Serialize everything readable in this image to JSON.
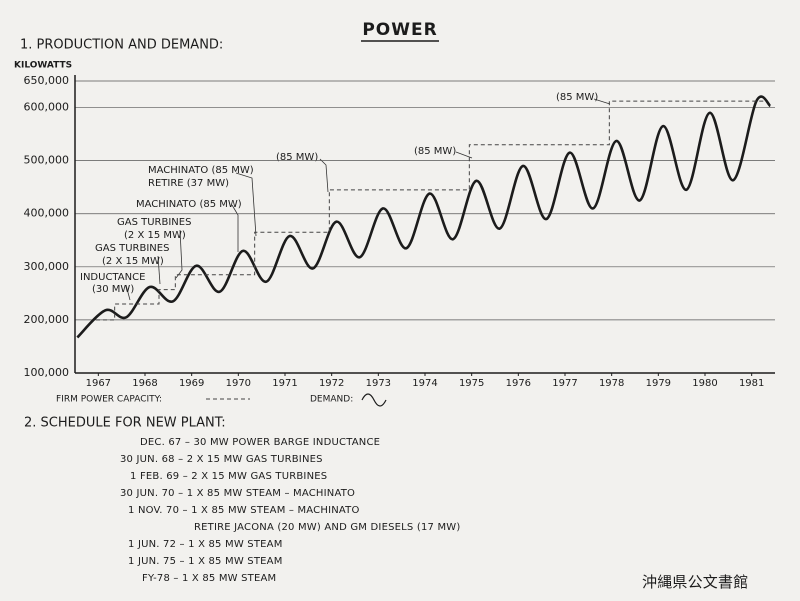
{
  "title": "POWER",
  "chart_data": {
    "type": "line",
    "title": "1. PRODUCTION AND DEMAND:",
    "ylabel": "KILOWATTS",
    "xlim": [
      1967,
      1982
    ],
    "xticks": [
      {
        "value": 1967.5,
        "label": "1967"
      },
      {
        "value": 1968.5,
        "label": "1968"
      },
      {
        "value": 1969.5,
        "label": "1969"
      },
      {
        "value": 1970.5,
        "label": "1970"
      },
      {
        "value": 1971.5,
        "label": "1971"
      },
      {
        "value": 1972.5,
        "label": "1972"
      },
      {
        "value": 1973.5,
        "label": "1973"
      },
      {
        "value": 1974.5,
        "label": "1974"
      },
      {
        "value": 1975.5,
        "label": "1975"
      },
      {
        "value": 1976.5,
        "label": "1976"
      },
      {
        "value": 1977.5,
        "label": "1977"
      },
      {
        "value": 1978.5,
        "label": "1978"
      },
      {
        "value": 1979.5,
        "label": "1979"
      },
      {
        "value": 1980.5,
        "label": "1980"
      },
      {
        "value": 1981.5,
        "label": "1981"
      }
    ],
    "ylim": [
      100000,
      650000
    ],
    "yticks": [
      {
        "value": 100000,
        "label": "100,000"
      },
      {
        "value": 200000,
        "label": "200,000"
      },
      {
        "value": 300000,
        "label": "300,000"
      },
      {
        "value": 400000,
        "label": "400,000"
      },
      {
        "value": 500000,
        "label": "500,000"
      },
      {
        "value": 600000,
        "label": "600,000"
      },
      {
        "value": 650000,
        "label": "650,000"
      }
    ],
    "grid": true,
    "series": [
      {
        "name": "DEMAND:",
        "color": "#1c1c1c",
        "style": "smooth",
        "x": [
          1967.05,
          1967.65,
          1968.1,
          1968.6,
          1969.1,
          1969.6,
          1970.1,
          1970.6,
          1971.1,
          1971.6,
          1972.1,
          1972.6,
          1973.1,
          1973.6,
          1974.1,
          1974.6,
          1975.1,
          1975.6,
          1976.1,
          1976.6,
          1977.1,
          1977.6,
          1978.1,
          1978.6,
          1979.1,
          1979.6,
          1980.1,
          1980.6,
          1981.1,
          1981.6,
          1981.9
        ],
        "values": [
          167000,
          218000,
          205000,
          262000,
          235000,
          302000,
          253000,
          330000,
          272000,
          358000,
          297000,
          385000,
          318000,
          410000,
          335000,
          438000,
          352000,
          462000,
          372000,
          490000,
          390000,
          515000,
          410000,
          537000,
          425000,
          565000,
          445000,
          590000,
          463000,
          612000,
          603000
        ]
      },
      {
        "name": "FIRM POWER CAPACITY:",
        "color": "#444444",
        "style": "step-dashed",
        "x": [
          1967.45,
          1967.85,
          1968.8,
          1969.15,
          1970.85,
          1972.45,
          1975.45,
          1978.45,
          1981.75
        ],
        "values": [
          200000,
          230000,
          257000,
          285000,
          365000,
          445000,
          530000,
          612000,
          612000
        ]
      }
    ],
    "annotations": [
      "(85 MW)",
      "(85 MW)",
      "(85 MW)",
      "MACHINATO (85 MW)",
      "RETIRE (37 MW)",
      "MACHINATO (85 MW)",
      "GAS TURBINES",
      "(2 X 15 MW)",
      "GAS TURBINES",
      "(2 X 15 MW)",
      "INDUCTANCE",
      "(30 MW)"
    ]
  },
  "schedule": {
    "title": "2. SCHEDULE FOR NEW PLANT:",
    "items": [
      "DEC. 67 – 30 MW POWER BARGE INDUCTANCE",
      "30 JUN. 68 – 2 X 15 MW GAS TURBINES",
      "1 FEB. 69 – 2 X 15 MW GAS TURBINES",
      "30 JUN. 70 – 1 X 85 MW STEAM – MACHINATO",
      "1 NOV. 70 – 1 X 85 MW STEAM – MACHINATO",
      "RETIRE JACONA (20 MW) AND GM DIESELS (17 MW)",
      "1 JUN. 72 – 1 X 85 MW STEAM",
      "1 JUN. 75 – 1 X 85 MW STEAM",
      "FY-78 – 1 X 85 MW STEAM"
    ]
  },
  "watermark": "沖縄県公文書館"
}
